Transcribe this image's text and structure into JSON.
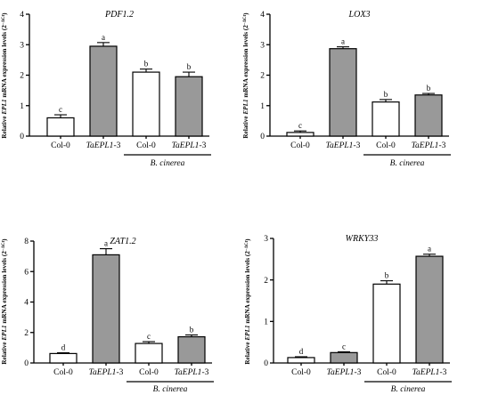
{
  "colors": {
    "white_bar": "#ffffff",
    "grey_bar": "#999999"
  },
  "chart_data": [
    {
      "type": "bar",
      "title": "PDF1.2",
      "ylabel_parts": [
        "Relative ",
        "EPL1",
        " mRNA expression levels (2",
        "−ΔCt",
        ")"
      ],
      "ylim": [
        0,
        4
      ],
      "yticks": [
        0,
        1,
        2,
        3,
        4
      ],
      "categories": [
        {
          "label": "Col-0",
          "italic": "",
          "suffix": ""
        },
        {
          "label": "",
          "italic": "TaEPL1",
          "suffix": "-3"
        },
        {
          "label": "Col-0",
          "italic": "",
          "suffix": ""
        },
        {
          "label": "",
          "italic": "TaEPL1",
          "suffix": "-3"
        }
      ],
      "values": [
        0.6,
        2.95,
        2.1,
        1.95
      ],
      "errors": [
        0.1,
        0.12,
        0.1,
        0.15
      ],
      "fills": [
        "white",
        "grey",
        "white",
        "grey"
      ],
      "letters": [
        "c",
        "a",
        "b",
        "b"
      ],
      "group_label": "B. cinerea"
    },
    {
      "type": "bar",
      "title": "LOX3",
      "ylabel_parts": [
        "Relative ",
        "EPL1",
        " mRNA expression levels (2",
        "−ΔCt",
        ")"
      ],
      "ylim": [
        0,
        4
      ],
      "yticks": [
        0,
        1,
        2,
        3,
        4
      ],
      "categories": [
        {
          "label": "Col-0",
          "italic": "",
          "suffix": ""
        },
        {
          "label": "",
          "italic": "TaEPL1",
          "suffix": "-3"
        },
        {
          "label": "Col-0",
          "italic": "",
          "suffix": ""
        },
        {
          "label": "",
          "italic": "TaEPL1",
          "suffix": "-3"
        }
      ],
      "values": [
        0.12,
        2.87,
        1.12,
        1.35
      ],
      "errors": [
        0.05,
        0.06,
        0.08,
        0.05
      ],
      "fills": [
        "white",
        "grey",
        "white",
        "grey"
      ],
      "letters": [
        "c",
        "a",
        "b",
        "b"
      ],
      "group_label": "B. cinerea"
    },
    {
      "type": "bar",
      "title": "ZAT1.2",
      "ylabel_parts": [
        "Relative ",
        "EPL1",
        " mRNA expression levels (2",
        "−ΔCt",
        ")"
      ],
      "ylim": [
        0,
        8
      ],
      "yticks": [
        0,
        2,
        4,
        6,
        8
      ],
      "categories": [
        {
          "label": "Col-0",
          "italic": "",
          "suffix": ""
        },
        {
          "label": "",
          "italic": "TaEPL1",
          "suffix": "-3"
        },
        {
          "label": "Col-0",
          "italic": "",
          "suffix": ""
        },
        {
          "label": "",
          "italic": "TaEPL1",
          "suffix": "-3"
        }
      ],
      "values": [
        0.62,
        7.1,
        1.28,
        1.72
      ],
      "errors": [
        0.05,
        0.4,
        0.12,
        0.12
      ],
      "fills": [
        "white",
        "grey",
        "white",
        "grey"
      ],
      "letters": [
        "d",
        "a",
        "c",
        "b"
      ],
      "group_label": "B. cinerea"
    },
    {
      "type": "bar",
      "title": "WRKY33",
      "ylabel_parts": [
        "Relative ",
        "EPL1",
        " mRNA expression levels (2",
        "−ΔCt",
        ")"
      ],
      "ylim": [
        0,
        3
      ],
      "yticks": [
        0,
        1,
        2,
        3
      ],
      "categories": [
        {
          "label": "Col-0",
          "italic": "",
          "suffix": ""
        },
        {
          "label": "",
          "italic": "TaEPL1",
          "suffix": "-3"
        },
        {
          "label": "Col-0",
          "italic": "",
          "suffix": ""
        },
        {
          "label": "",
          "italic": "TaEPL1",
          "suffix": "-3"
        }
      ],
      "values": [
        0.13,
        0.25,
        1.9,
        2.57
      ],
      "errors": [
        0.02,
        0.02,
        0.08,
        0.05
      ],
      "fills": [
        "white",
        "grey",
        "white",
        "grey"
      ],
      "letters": [
        "d",
        "c",
        "b",
        "a"
      ],
      "group_label": "B. cinerea"
    }
  ]
}
